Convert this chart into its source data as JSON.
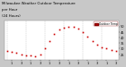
{
  "title": "Milwaukee Weather Outdoor Temperature per Hour (24 Hours)",
  "title_fontsize": 3.0,
  "bg_color": "#c8c8c8",
  "plot_bg_color": "#ffffff",
  "line_color": "#cc0000",
  "marker_color": "#cc0000",
  "marker_size": 1.2,
  "legend_label": "Outdoor Temp",
  "legend_box_facecolor": "#cc0000",
  "legend_box_edgecolor": "#880000",
  "hours": [
    0,
    1,
    2,
    3,
    4,
    5,
    6,
    7,
    8,
    9,
    10,
    11,
    12,
    13,
    14,
    15,
    16,
    17,
    18,
    19,
    20,
    21,
    22,
    23
  ],
  "temps": [
    28,
    27,
    26,
    25,
    24,
    24,
    23,
    25,
    30,
    37,
    43,
    47,
    49,
    50,
    50,
    48,
    45,
    41,
    37,
    34,
    31,
    30,
    29,
    28
  ],
  "ylim": [
    20,
    55
  ],
  "yticks": [
    25,
    30,
    35,
    40,
    45,
    50
  ],
  "grid_positions": [
    0,
    4,
    8,
    12,
    16,
    20,
    24
  ],
  "tick_fontsize": 2.5,
  "spine_color": "#888888",
  "grid_color": "#aaaaaa",
  "title_color": "#000000"
}
